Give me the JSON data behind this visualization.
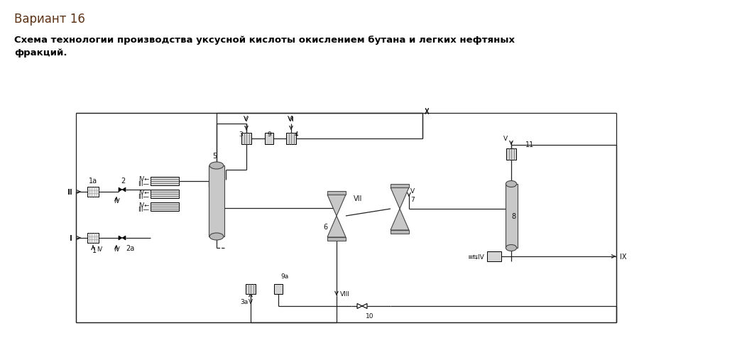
{
  "title1": "Вариант 16",
  "title2_line1": "Схема технологии производства уксусной кислоты окислением бутана и легких нефтяных",
  "title2_line2": "фракций.",
  "bg_color": "#ffffff",
  "fig_w": 10.38,
  "fig_h": 4.77,
  "dpi": 100
}
